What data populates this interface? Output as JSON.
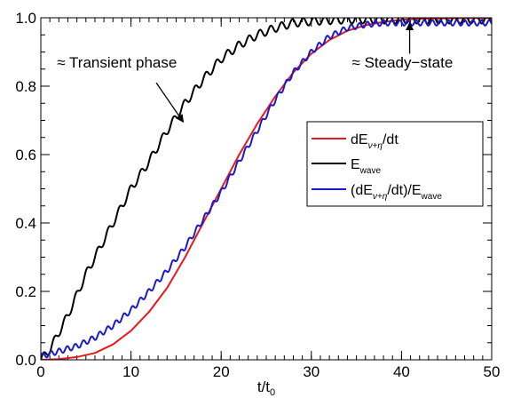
{
  "chart_data": {
    "type": "line",
    "xlabel": "t/t",
    "xlabel_sub": "0",
    "ylabel": "",
    "xlim": [
      0,
      50
    ],
    "ylim": [
      0,
      1.0
    ],
    "x_ticks": [
      0,
      10,
      20,
      30,
      40,
      50
    ],
    "x_tick_labels": [
      "0",
      "10",
      "20",
      "30",
      "40",
      "50"
    ],
    "y_ticks": [
      0.0,
      0.2,
      0.4,
      0.6,
      0.8,
      1.0
    ],
    "y_tick_labels": [
      "0.0",
      "0.2",
      "0.4",
      "0.6",
      "0.8",
      "1.0"
    ],
    "x_minor_step": 1,
    "y_minor_step": 0.05,
    "grid": false,
    "legend_position": "center-right",
    "legend": [
      {
        "series": "dE",
        "label_main": "dE",
        "label_sub": "ν+η",
        "label_rest": "/dt"
      },
      {
        "series": "Ewave",
        "label_main": "E",
        "label_sub": "wave",
        "label_rest": ""
      },
      {
        "series": "ratio",
        "label_main": "(dE",
        "label_sub": "ν+η",
        "label_rest": "/dt)/E",
        "label_sub2": "wave"
      }
    ],
    "annotations": [
      {
        "text": "≈ Transient phase",
        "x": 1.8,
        "y": 0.855,
        "arrow_from": [
          12.8,
          0.81
        ],
        "arrow_to": [
          15.8,
          0.695
        ]
      },
      {
        "text": "≈ Steady−state",
        "x": 34.5,
        "y": 0.855,
        "arrow_from": [
          40.9,
          0.895
        ],
        "arrow_to": [
          40.9,
          0.985
        ]
      }
    ],
    "series": [
      {
        "id": "dE",
        "color": "#e8191d",
        "x": [
          0,
          2,
          4,
          6,
          8,
          10,
          12,
          14,
          16,
          18,
          20,
          22,
          24,
          26,
          28,
          30,
          32,
          34,
          36,
          38,
          40,
          42,
          44,
          46,
          48,
          50
        ],
        "y": [
          0.0,
          0.002,
          0.008,
          0.02,
          0.045,
          0.085,
          0.14,
          0.21,
          0.3,
          0.4,
          0.5,
          0.6,
          0.69,
          0.77,
          0.84,
          0.895,
          0.935,
          0.962,
          0.978,
          0.988,
          0.994,
          0.997,
          0.998,
          0.999,
          0.999,
          0.999
        ]
      },
      {
        "id": "Ewave",
        "color": "#000000",
        "oscillation": {
          "amplitude": 0.012,
          "period": 1.2
        },
        "x": [
          0,
          1,
          2,
          3,
          4,
          5,
          6,
          7,
          8,
          9,
          10,
          12,
          14,
          16,
          18,
          20,
          22,
          24,
          26,
          28,
          30,
          32,
          34,
          36,
          38,
          40,
          42,
          44,
          46,
          48,
          50
        ],
        "y": [
          0.0,
          0.03,
          0.08,
          0.13,
          0.19,
          0.25,
          0.3,
          0.35,
          0.4,
          0.45,
          0.5,
          0.58,
          0.67,
          0.75,
          0.82,
          0.88,
          0.92,
          0.95,
          0.97,
          0.985,
          0.99,
          0.993,
          0.995,
          0.995,
          0.995,
          0.995,
          0.995,
          0.995,
          0.995,
          0.995,
          0.995
        ]
      },
      {
        "id": "ratio",
        "color": "#1a1acc",
        "oscillation": {
          "amplitude": 0.008,
          "period": 0.9
        },
        "x": [
          0,
          2,
          4,
          6,
          8,
          10,
          12,
          14,
          16,
          18,
          20,
          22,
          24,
          26,
          28,
          30,
          32,
          34,
          36,
          38,
          40,
          42,
          44,
          46,
          48,
          50
        ],
        "y": [
          0.01,
          0.025,
          0.04,
          0.065,
          0.1,
          0.145,
          0.2,
          0.26,
          0.33,
          0.41,
          0.49,
          0.58,
          0.67,
          0.76,
          0.84,
          0.9,
          0.945,
          0.97,
          0.98,
          0.985,
          0.985,
          0.985,
          0.985,
          0.985,
          0.985,
          0.985
        ]
      }
    ]
  }
}
